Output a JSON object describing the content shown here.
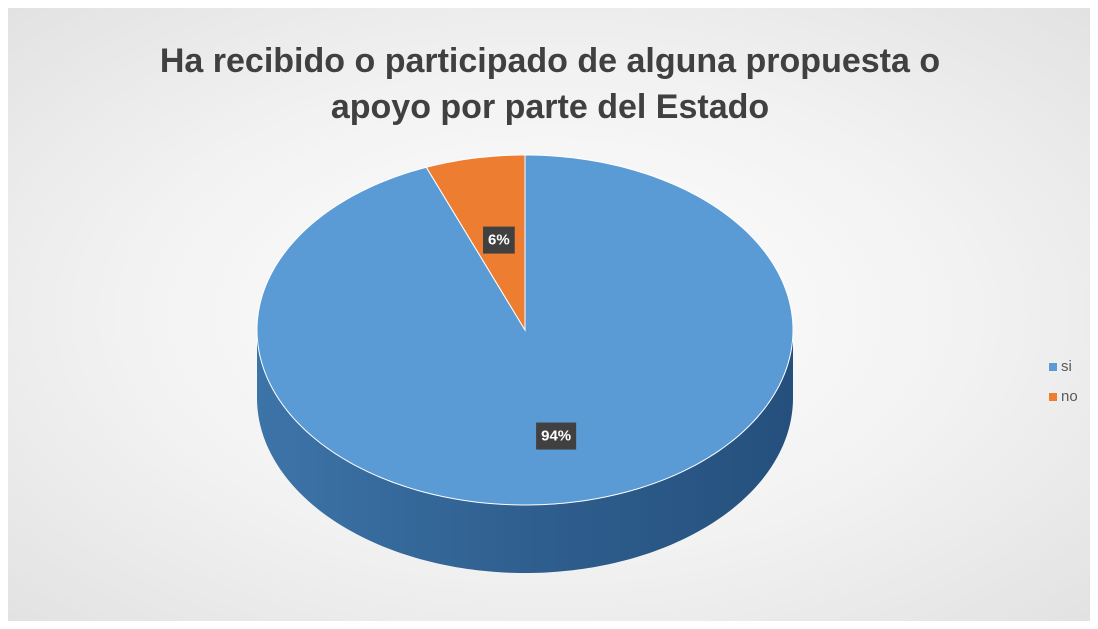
{
  "chart_data": {
    "type": "pie",
    "title": "Ha recibido o participado de alguna propuesta o apoyo por parte del Estado",
    "categories": [
      "si",
      "no"
    ],
    "values": [
      94,
      6
    ],
    "value_labels": [
      "94%",
      "6%"
    ],
    "colors": [
      "#5b9bd5",
      "#ed7d31"
    ],
    "legend": "right"
  }
}
